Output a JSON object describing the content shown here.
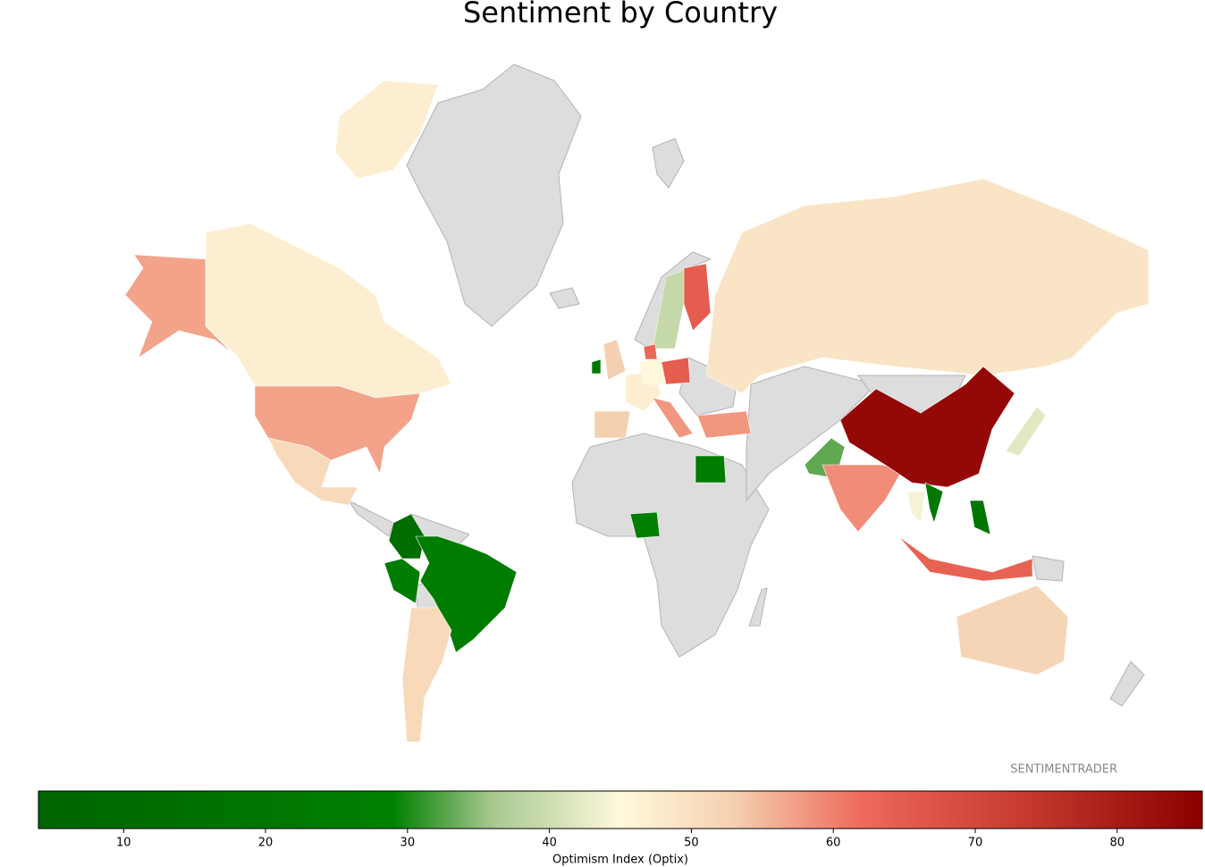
{
  "chart_data": {
    "type": "choropleth",
    "title": "Sentiment by Country",
    "colorbar_label": "Optimism Index (Optix)",
    "source": "SENTIMENTRADER",
    "values": [
      47,
      47,
      57,
      57,
      51,
      12,
      25,
      25,
      51,
      53,
      22,
      53,
      47,
      45,
      65,
      58,
      39,
      65,
      49,
      58,
      25,
      28,
      33,
      59,
      84,
      42,
      22,
      44,
      20,
      64,
      52,
      63
    ],
    "clim": [
      4,
      86
    ],
    "cticks": [
      10,
      20,
      30,
      40,
      50,
      60,
      70,
      80
    ],
    "colorscale": [
      [
        4,
        "#006400"
      ],
      [
        29,
        "#008000"
      ],
      [
        36,
        "#a8c890"
      ],
      [
        45,
        "#fff8dc"
      ],
      [
        53,
        "#f5d0b0"
      ],
      [
        62,
        "#ee6a5a"
      ],
      [
        73,
        "#c83c30"
      ],
      [
        86,
        "#8b0000"
      ]
    ]
  }
}
